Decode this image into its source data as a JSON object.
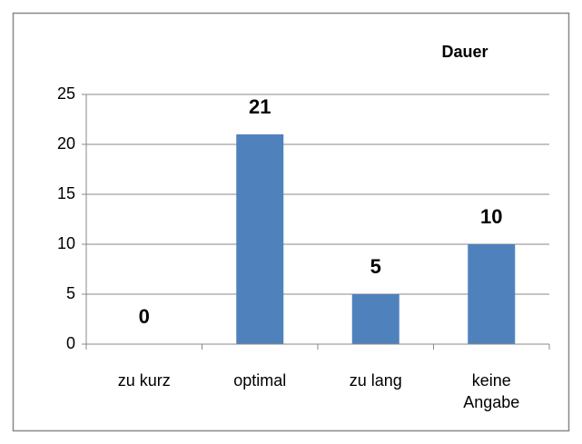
{
  "chart_data": {
    "type": "bar",
    "title": "Dauer",
    "categories": [
      "zu kurz",
      "optimal",
      "zu lang",
      "keine Angabe"
    ],
    "values": [
      0,
      21,
      5,
      10
    ],
    "color": "#4f81bd",
    "ylim": [
      0,
      25
    ],
    "yticks": [
      0,
      5,
      10,
      15,
      20,
      25
    ],
    "grid": true
  }
}
